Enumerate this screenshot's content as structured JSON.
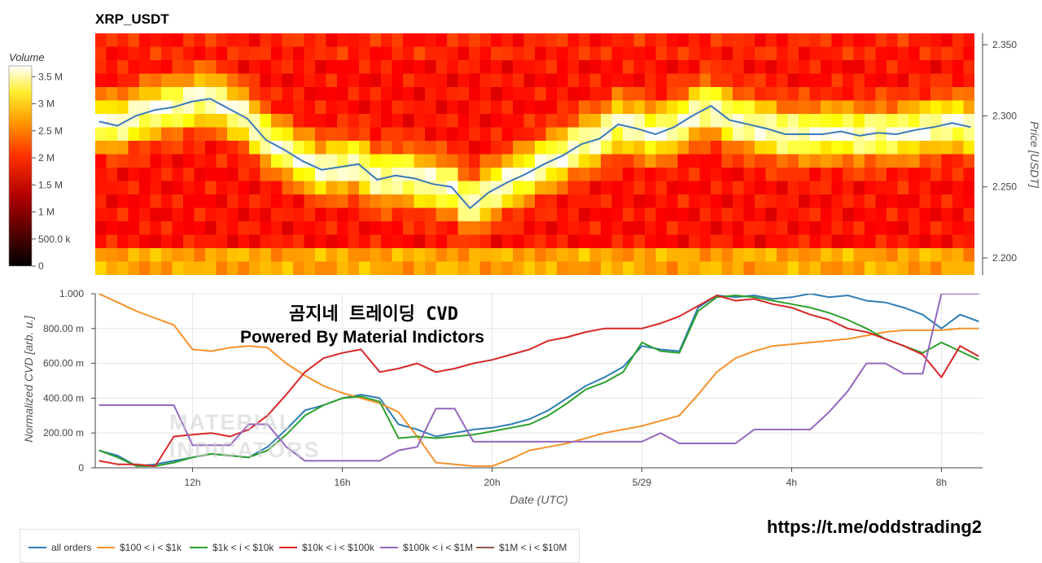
{
  "title": "XRP_USDT",
  "annotation_line1": "곰지네 트레이딩 CVD",
  "annotation_line2": "Powered By Material Indictors",
  "footer_link": "https://t.me/oddstrading2",
  "watermark_line1": "MATERIAL",
  "watermark_line2": "INDICATORS",
  "colorbar": {
    "title": "Volume",
    "ticks": [
      "3.5 M",
      "3 M",
      "2.5 M",
      "2 M",
      "1.5 M",
      "1 M",
      "500.0 k",
      "0"
    ],
    "tick_values": [
      3.5,
      3.0,
      2.5,
      2.0,
      1.5,
      1.0,
      0.5,
      0
    ]
  },
  "chart_data": [
    {
      "type": "heatmap",
      "title": "XRP_USDT",
      "ylabel": "Price [USDT]",
      "y_ticks": [
        "2.350",
        "2.300",
        "2.250",
        "2.200"
      ],
      "y_tick_values": [
        2.35,
        2.3,
        2.25,
        2.2
      ],
      "ylim": [
        2.188,
        2.358
      ],
      "colorscale": "hot",
      "zlim": [
        0,
        3.7
      ],
      "price_line": {
        "color": "#3a7ab8",
        "x_hours": [
          0,
          0.5,
          1,
          1.5,
          2,
          2.5,
          3,
          3.5,
          4,
          4.5,
          5,
          5.5,
          6,
          6.5,
          7,
          7.5,
          8,
          8.5,
          9,
          9.5,
          10,
          10.5,
          11,
          11.5,
          12,
          12.5,
          13,
          13.5,
          14,
          14.5,
          15,
          15.5,
          16,
          16.5,
          17,
          17.5,
          18,
          18.5,
          19,
          19.5,
          20,
          20.5,
          21,
          21.5,
          22,
          22.5,
          23,
          23.5
        ],
        "values": [
          2.296,
          2.293,
          2.3,
          2.304,
          2.306,
          2.31,
          2.312,
          2.305,
          2.298,
          2.283,
          2.276,
          2.268,
          2.262,
          2.264,
          2.266,
          2.255,
          2.258,
          2.256,
          2.252,
          2.25,
          2.235,
          2.246,
          2.253,
          2.259,
          2.266,
          2.272,
          2.28,
          2.284,
          2.294,
          2.291,
          2.287,
          2.292,
          2.3,
          2.307,
          2.297,
          2.294,
          2.291,
          2.287,
          2.287,
          2.287,
          2.289,
          2.286,
          2.288,
          2.287,
          2.29,
          2.292,
          2.295,
          2.292
        ]
      }
    },
    {
      "type": "line",
      "xlabel": "Date (UTC)",
      "ylabel": "Normalized CVD [arb. u.]",
      "x_ticks": [
        "12h",
        "16h",
        "20h",
        "5/29",
        "4h",
        "8h"
      ],
      "x_tick_hours": [
        2.5,
        6.5,
        10.5,
        14.5,
        18.5,
        22.5
      ],
      "xlim_hours": [
        -0.1,
        23.6
      ],
      "y_ticks": [
        "1.000",
        "800.00 m",
        "600.00 m",
        "400.00 m",
        "200.00 m",
        "0"
      ],
      "y_tick_values": [
        1.0,
        0.8,
        0.6,
        0.4,
        0.2,
        0
      ],
      "ylim": [
        0,
        1.0
      ],
      "grid": true,
      "legend_position": "bottom",
      "x_hours": [
        0,
        0.5,
        1,
        1.5,
        2,
        2.5,
        3,
        3.5,
        4,
        4.5,
        5,
        5.5,
        6,
        6.5,
        7,
        7.5,
        8,
        8.5,
        9,
        9.5,
        10,
        10.5,
        11,
        11.5,
        12,
        12.5,
        13,
        13.5,
        14,
        14.5,
        15,
        15.5,
        16,
        16.5,
        17,
        17.5,
        18,
        18.5,
        19,
        19.5,
        20,
        20.5,
        21,
        21.5,
        22,
        22.5,
        23,
        23.5
      ],
      "series": [
        {
          "name": "all orders",
          "color": "#2f7db5",
          "values": [
            0.1,
            0.07,
            0.01,
            0.02,
            0.04,
            0.06,
            0.08,
            0.07,
            0.06,
            0.12,
            0.22,
            0.33,
            0.36,
            0.4,
            0.42,
            0.4,
            0.25,
            0.22,
            0.18,
            0.2,
            0.22,
            0.23,
            0.25,
            0.28,
            0.33,
            0.4,
            0.47,
            0.52,
            0.58,
            0.7,
            0.68,
            0.67,
            0.92,
            0.99,
            0.98,
            0.99,
            0.97,
            0.98,
            1.0,
            0.98,
            0.99,
            0.96,
            0.95,
            0.92,
            0.88,
            0.8,
            0.88,
            0.84
          ]
        },
        {
          "name": "$100 < i < $1k",
          "color": "#f5922b",
          "values": [
            1.0,
            0.95,
            0.9,
            0.86,
            0.82,
            0.68,
            0.67,
            0.69,
            0.7,
            0.69,
            0.6,
            0.53,
            0.47,
            0.43,
            0.4,
            0.37,
            0.32,
            0.18,
            0.03,
            0.02,
            0.01,
            0.01,
            0.05,
            0.1,
            0.12,
            0.14,
            0.17,
            0.2,
            0.22,
            0.24,
            0.27,
            0.3,
            0.42,
            0.55,
            0.63,
            0.67,
            0.7,
            0.71,
            0.72,
            0.73,
            0.74,
            0.76,
            0.78,
            0.79,
            0.79,
            0.79,
            0.8,
            0.8
          ]
        },
        {
          "name": "$1k < i < $10k",
          "color": "#2ca02c",
          "values": [
            0.1,
            0.06,
            0.01,
            0.01,
            0.03,
            0.06,
            0.08,
            0.07,
            0.06,
            0.1,
            0.19,
            0.3,
            0.36,
            0.4,
            0.41,
            0.38,
            0.17,
            0.18,
            0.17,
            0.18,
            0.19,
            0.21,
            0.23,
            0.25,
            0.3,
            0.37,
            0.45,
            0.49,
            0.55,
            0.72,
            0.67,
            0.66,
            0.9,
            0.98,
            0.99,
            0.98,
            0.96,
            0.94,
            0.92,
            0.89,
            0.85,
            0.8,
            0.74,
            0.7,
            0.66,
            0.72,
            0.67,
            0.62
          ]
        },
        {
          "name": "$10k < i < $100k",
          "color": "#d62728",
          "values": [
            0.04,
            0.02,
            0.02,
            0.01,
            0.18,
            0.19,
            0.2,
            0.18,
            0.22,
            0.3,
            0.42,
            0.55,
            0.63,
            0.66,
            0.68,
            0.55,
            0.57,
            0.6,
            0.55,
            0.57,
            0.6,
            0.62,
            0.65,
            0.68,
            0.73,
            0.75,
            0.78,
            0.8,
            0.8,
            0.8,
            0.83,
            0.87,
            0.93,
            0.99,
            0.96,
            0.97,
            0.94,
            0.92,
            0.88,
            0.85,
            0.8,
            0.78,
            0.74,
            0.7,
            0.65,
            0.52,
            0.7,
            0.64
          ]
        },
        {
          "name": "$100k < i < $1M",
          "color": "#9467bd",
          "values": [
            0.36,
            0.36,
            0.36,
            0.36,
            0.36,
            0.13,
            0.13,
            0.13,
            0.25,
            0.25,
            0.12,
            0.04,
            0.04,
            0.04,
            0.04,
            0.04,
            0.1,
            0.12,
            0.34,
            0.34,
            0.15,
            0.15,
            0.15,
            0.15,
            0.15,
            0.15,
            0.15,
            0.15,
            0.15,
            0.15,
            0.2,
            0.14,
            0.14,
            0.14,
            0.14,
            0.22,
            0.22,
            0.22,
            0.22,
            0.32,
            0.44,
            0.6,
            0.6,
            0.54,
            0.54,
            1.0,
            1.0,
            1.0
          ]
        },
        {
          "name": "$1M < i < $10M",
          "color": "#8c564b",
          "values": []
        }
      ]
    }
  ]
}
